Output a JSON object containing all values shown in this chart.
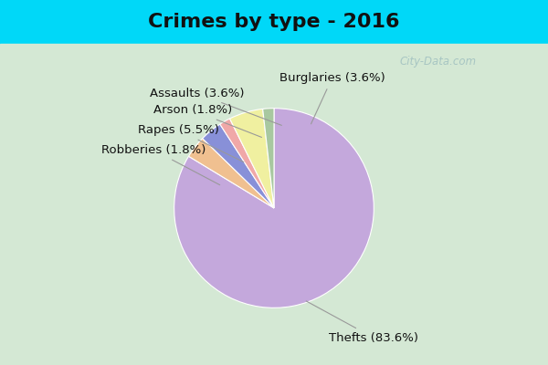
{
  "title": "Crimes by type - 2016",
  "slices": [
    {
      "label": "Thefts",
      "pct": 83.6,
      "color": "#c4a8dc"
    },
    {
      "label": "Burglaries",
      "pct": 3.6,
      "color": "#f0c090"
    },
    {
      "label": "Assaults",
      "pct": 3.6,
      "color": "#8890d8"
    },
    {
      "label": "Arson",
      "pct": 1.8,
      "color": "#f0a8a8"
    },
    {
      "label": "Rapes",
      "pct": 5.5,
      "color": "#f0f0a0"
    },
    {
      "label": "Robberies",
      "pct": 1.8,
      "color": "#a8c8a0"
    }
  ],
  "background_cyan": "#00d8f8",
  "background_main": "#d4e8d4",
  "title_fontsize": 16,
  "label_fontsize": 9.5,
  "watermark": "City-Data.com"
}
